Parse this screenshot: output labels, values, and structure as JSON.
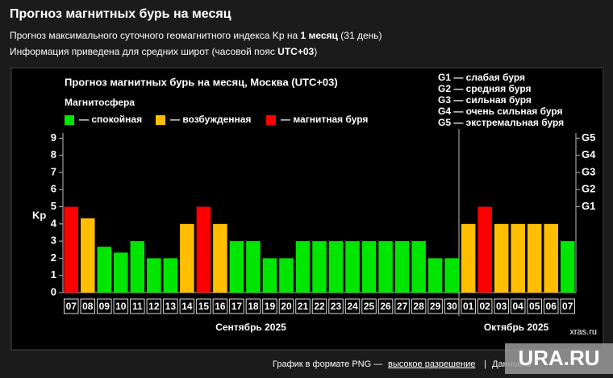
{
  "header": {
    "title": "Прогноз магнитных бурь на месяц",
    "line1_pre": "Прогноз максимального суточного геомагнитного индекса Kp на",
    "line1_bold": "1 месяц",
    "line1_post": "(31 день)",
    "line2_pre": "Информация приведена для средних широт (часовой пояс",
    "line2_bold": "UTC+03",
    "line2_post": ")"
  },
  "chart_data": {
    "type": "bar",
    "title": "Прогноз магнитных бурь на месяц, Москва (UTC+03)",
    "legend_title": "Магнитосфера",
    "legend": [
      {
        "name": "— спокойная",
        "color": "#00e600"
      },
      {
        "name": "— возбужденная",
        "color": "#ffbf00"
      },
      {
        "name": "— магнитная буря",
        "color": "#ff0000"
      }
    ],
    "g_legend": [
      "G1 — слабая буря",
      "G2 — средняя буря",
      "G3 — сильная буря",
      "G4 — очень сильная буря",
      "G5 — экстремальная буря"
    ],
    "y_label": "Kp",
    "categories": [
      "07",
      "08",
      "09",
      "10",
      "11",
      "12",
      "13",
      "14",
      "15",
      "16",
      "17",
      "18",
      "19",
      "20",
      "21",
      "22",
      "23",
      "24",
      "25",
      "26",
      "27",
      "28",
      "29",
      "30",
      "01",
      "02",
      "03",
      "04",
      "05",
      "06",
      "07"
    ],
    "values": [
      5,
      4.33,
      2.67,
      2.33,
      3,
      2,
      2,
      4,
      5,
      4,
      3,
      3,
      2,
      2,
      3,
      3,
      3,
      3,
      3,
      3,
      3,
      3,
      2,
      2,
      4,
      5,
      4,
      4,
      4,
      4,
      3
    ],
    "colors": [
      "#ff0000",
      "#ffbf00",
      "#00e600",
      "#00e600",
      "#00e600",
      "#00e600",
      "#00e600",
      "#ffbf00",
      "#ff0000",
      "#ffbf00",
      "#00e600",
      "#00e600",
      "#00e600",
      "#00e600",
      "#00e600",
      "#00e600",
      "#00e600",
      "#00e600",
      "#00e600",
      "#00e600",
      "#00e600",
      "#00e600",
      "#00e600",
      "#00e600",
      "#ffbf00",
      "#ff0000",
      "#ffbf00",
      "#ffbf00",
      "#ffbf00",
      "#ffbf00",
      "#00e600"
    ],
    "months": [
      "Сентябрь 2025",
      "Октябрь 2025"
    ],
    "ylim": [
      0,
      9.3
    ],
    "yticks": [
      0,
      1,
      2,
      3,
      4,
      5,
      6,
      7,
      8,
      9
    ],
    "y2lim": [
      0,
      9.3
    ],
    "y2ticks": [
      {
        "value": 5,
        "label": "G1"
      },
      {
        "value": 6,
        "label": "G2"
      },
      {
        "value": 7,
        "label": "G3"
      },
      {
        "value": 8,
        "label": "G4"
      },
      {
        "value": 9,
        "label": "G5"
      }
    ],
    "source": "xras.ru"
  },
  "footer": {
    "pre": "График в формате PNG —",
    "link": "высокое разрешение",
    "sep": "|",
    "post": "Данные в"
  },
  "watermark": "URA.RU"
}
